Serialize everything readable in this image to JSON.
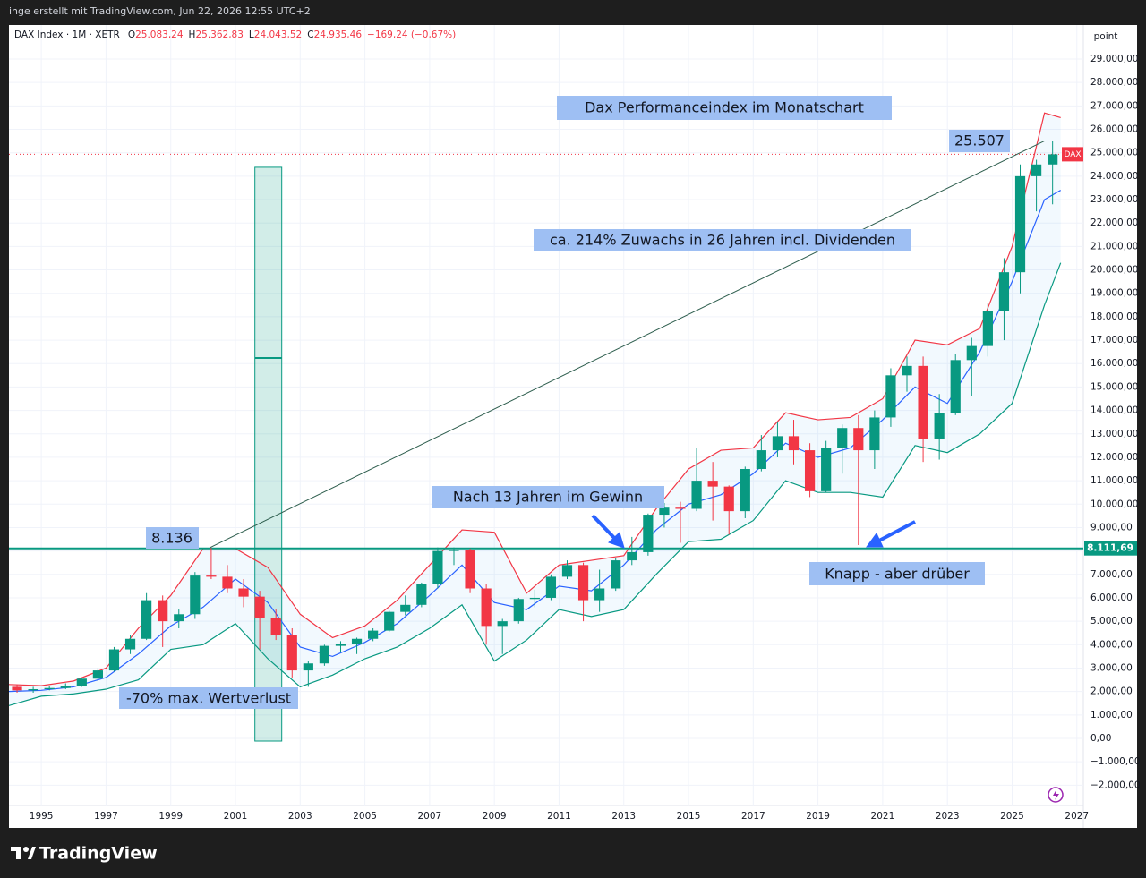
{
  "watermark": "inge erstellt mit TradingView.com, Jun 22, 2026 12:55 UTC+2",
  "footer": {
    "brand": "TradingView"
  },
  "chart_data": {
    "type": "candlestick",
    "header": {
      "title": "DAX Index · 1M · XETR",
      "fields": [
        {
          "label": "O",
          "value": "25.083,24"
        },
        {
          "label": "H",
          "value": "25.362,83"
        },
        {
          "label": "L",
          "value": "24.043,52"
        },
        {
          "label": "C",
          "value": "24.935,46"
        }
      ],
      "change": "−169,24 (−0,67%)"
    },
    "axis_unit": "point",
    "x": [
      1994,
      1994.5,
      1995,
      1995.5,
      1996,
      1996.5,
      1997,
      1997.5,
      1998,
      1998.5,
      1999,
      1999.5,
      2000,
      2000.5,
      2001,
      2001.5,
      2002,
      2002.5,
      2003,
      2003.5,
      2004,
      2004.5,
      2005,
      2005.5,
      2006,
      2006.5,
      2007,
      2007.5,
      2008,
      2008.5,
      2009,
      2009.5,
      2010,
      2010.5,
      2011,
      2011.5,
      2012,
      2012.5,
      2013,
      2013.5,
      2014,
      2014.5,
      2015,
      2015.5,
      2016,
      2016.5,
      2017,
      2017.5,
      2018,
      2018.5,
      2019,
      2019.5,
      2020,
      2020.5,
      2021,
      2021.5,
      2022,
      2022.5,
      2023,
      2023.5,
      2024,
      2024.5,
      2025,
      2025.5,
      2026
    ],
    "series": [
      {
        "up_color": "#089981",
        "down_color": "#f23645",
        "open": [
          2200,
          2050,
          2100,
          2150,
          2250,
          2550,
          2900,
          3800,
          4250,
          5900,
          5000,
          5300,
          6950,
          6900,
          6400,
          6050,
          5150,
          4400,
          2900,
          3200,
          3950,
          4050,
          4250,
          4600,
          5400,
          5700,
          6600,
          8000,
          8050,
          6400,
          4800,
          5000,
          5950,
          6000,
          6900,
          7400,
          5900,
          6400,
          7600,
          7950,
          9550,
          9850,
          9800,
          11000,
          10750,
          9700,
          11500,
          12300,
          12900,
          12300,
          10550,
          12400,
          13250,
          12300,
          13700,
          15500,
          15900,
          12800,
          13900,
          16150,
          16750,
          18250,
          19900,
          24000,
          24500
        ],
        "high": [
          2300,
          2200,
          2250,
          2350,
          2600,
          3000,
          3900,
          4400,
          6200,
          6100,
          5500,
          7100,
          8136,
          7400,
          6800,
          6300,
          5500,
          4700,
          3300,
          4000,
          4150,
          4300,
          4700,
          5450,
          6100,
          6650,
          8150,
          8150,
          8100,
          6600,
          5100,
          6000,
          6350,
          7000,
          7600,
          7500,
          7200,
          7700,
          8600,
          9600,
          10050,
          10100,
          12400,
          11800,
          10800,
          11600,
          12950,
          13500,
          13600,
          12600,
          12700,
          13400,
          13800,
          14000,
          15800,
          16300,
          16300,
          14700,
          16400,
          17100,
          18600,
          20500,
          24500,
          24700,
          25507
        ],
        "low": [
          1950,
          1950,
          2050,
          2100,
          2200,
          2450,
          2850,
          3600,
          4200,
          3900,
          4700,
          5100,
          6800,
          6200,
          5600,
          3800,
          4200,
          2600,
          2200,
          3100,
          3700,
          3600,
          4150,
          4550,
          5250,
          5600,
          6400,
          7400,
          6200,
          4000,
          3600,
          4900,
          5600,
          5900,
          6800,
          5000,
          5400,
          6300,
          7400,
          7800,
          9000,
          8350,
          9700,
          9300,
          8700,
          9400,
          11400,
          12000,
          11700,
          10300,
          10500,
          11300,
          8255,
          11500,
          13300,
          14800,
          11800,
          11900,
          13800,
          14600,
          16300,
          17000,
          19000,
          22500,
          22800
        ],
        "close": [
          2050,
          2100,
          2150,
          2250,
          2550,
          2900,
          3800,
          4250,
          5900,
          5000,
          5300,
          6950,
          6900,
          6400,
          6050,
          5150,
          4400,
          2900,
          3200,
          3950,
          4050,
          4250,
          4600,
          5400,
          5700,
          6600,
          8000,
          8050,
          6400,
          4800,
          5000,
          5950,
          6000,
          6900,
          7400,
          5900,
          6400,
          7600,
          7950,
          9550,
          9850,
          9800,
          11000,
          10750,
          9700,
          11500,
          12300,
          12900,
          12300,
          10550,
          12400,
          13250,
          12300,
          13700,
          15500,
          15900,
          12800,
          13900,
          16150,
          16750,
          18250,
          19900,
          24000,
          24500,
          24935
        ]
      }
    ],
    "bands": {
      "x": [
        1994,
        1995,
        1996,
        1997,
        1998,
        1999,
        2000,
        2001,
        2002,
        2003,
        2004,
        2005,
        2006,
        2007,
        2008,
        2009,
        2010,
        2011,
        2012,
        2013,
        2014,
        2015,
        2016,
        2017,
        2018,
        2019,
        2020,
        2021,
        2022,
        2023,
        2024,
        2025,
        2026,
        2026.5
      ],
      "upper": {
        "color": "#f23645",
        "values": [
          2300,
          2250,
          2450,
          3000,
          4700,
          6100,
          8100,
          8100,
          7300,
          5300,
          4300,
          4800,
          5900,
          7400,
          8900,
          8800,
          6200,
          7400,
          7600,
          7800,
          9800,
          11500,
          12300,
          12400,
          13900,
          13600,
          13700,
          14500,
          17000,
          16800,
          17500,
          21000,
          26700,
          26500
        ]
      },
      "middle": {
        "color": "#2962ff",
        "values": [
          2000,
          2050,
          2200,
          2600,
          3600,
          4800,
          5600,
          6800,
          5800,
          3900,
          3500,
          4100,
          4900,
          6100,
          7400,
          5800,
          5500,
          6500,
          6300,
          7400,
          8900,
          10000,
          10400,
          11300,
          12600,
          12000,
          12400,
          13600,
          15000,
          14300,
          16500,
          19500,
          23000,
          23400
        ]
      },
      "lower": {
        "color": "#089981",
        "values": [
          1400,
          1800,
          1900,
          2100,
          2500,
          3800,
          4000,
          4900,
          3400,
          2200,
          2700,
          3400,
          3900,
          4700,
          5700,
          3300,
          4200,
          5500,
          5200,
          5500,
          7000,
          8400,
          8500,
          9300,
          11000,
          10500,
          10500,
          10300,
          12500,
          12200,
          13000,
          14300,
          18500,
          20300
        ]
      }
    },
    "xlim": [
      1994.0,
      2027.2
    ],
    "xticks": [
      1995,
      1997,
      1999,
      2001,
      2003,
      2005,
      2007,
      2009,
      2011,
      2013,
      2015,
      2017,
      2019,
      2021,
      2023,
      2025,
      2027
    ],
    "ylim": [
      -2866,
      30452
    ],
    "yticks": [
      {
        "value": -2000,
        "label": "−2.000,00"
      },
      {
        "value": -1000,
        "label": "−1.000,00"
      },
      {
        "value": 0,
        "label": "0,00"
      },
      {
        "value": 1000,
        "label": "1.000,00"
      },
      {
        "value": 2000,
        "label": "2.000,00"
      },
      {
        "value": 3000,
        "label": "3.000,00"
      },
      {
        "value": 4000,
        "label": "4.000,00"
      },
      {
        "value": 5000,
        "label": "5.000,00"
      },
      {
        "value": 6000,
        "label": "6.000,00"
      },
      {
        "value": 7000,
        "label": "7.000,00"
      },
      {
        "value": 8000,
        "label": "8.000,00"
      },
      {
        "value": 9000,
        "label": "9.000,00"
      },
      {
        "value": 10000,
        "label": "10.000,00"
      },
      {
        "value": 11000,
        "label": "11.000,00"
      },
      {
        "value": 12000,
        "label": "12.000,00"
      },
      {
        "value": 13000,
        "label": "13.000,00"
      },
      {
        "value": 14000,
        "label": "14.000,00"
      },
      {
        "value": 15000,
        "label": "15.000,00"
      },
      {
        "value": 16000,
        "label": "16.000,00"
      },
      {
        "value": 17000,
        "label": "17.000,00"
      },
      {
        "value": 18000,
        "label": "18.000,00"
      },
      {
        "value": 19000,
        "label": "19.000,00"
      },
      {
        "value": 20000,
        "label": "20.000,00"
      },
      {
        "value": 21000,
        "label": "21.000,00"
      },
      {
        "value": 22000,
        "label": "22.000,00"
      },
      {
        "value": 23000,
        "label": "23.000,00"
      },
      {
        "value": 24000,
        "label": "24.000,00"
      },
      {
        "value": 25000,
        "label": "25.000,00"
      },
      {
        "value": 26000,
        "label": "26.000,00"
      },
      {
        "value": 27000,
        "label": "27.000,00"
      },
      {
        "value": 28000,
        "label": "28.000,00"
      },
      {
        "value": 29000,
        "label": "29.000,00"
      }
    ],
    "grid": true,
    "level_line": {
      "value": 8111.69,
      "label": "8.111,69",
      "color": "#089981"
    },
    "price_line": {
      "value": 24935.46,
      "label": "DAX",
      "color": "#f23645"
    },
    "trend_line": {
      "x": [
        2000.2,
        2026.0
      ],
      "y": [
        8136,
        25507
      ],
      "color": "#2e5e4e"
    },
    "range_box": {
      "x": [
        2001.6,
        2002.43
      ],
      "y": [
        -115,
        24380
      ],
      "mid": 16240,
      "color": "#089981"
    },
    "annotations": [
      "Dax Performanceindex im Monatschart",
      "25.507",
      "ca. 214% Zuwachs in 26 Jahren incl. Dividenden",
      "Nach 13 Jahren im Gewinn",
      "8.136",
      "Knapp - aber drüber",
      "-70% max. Wertverlust"
    ]
  }
}
